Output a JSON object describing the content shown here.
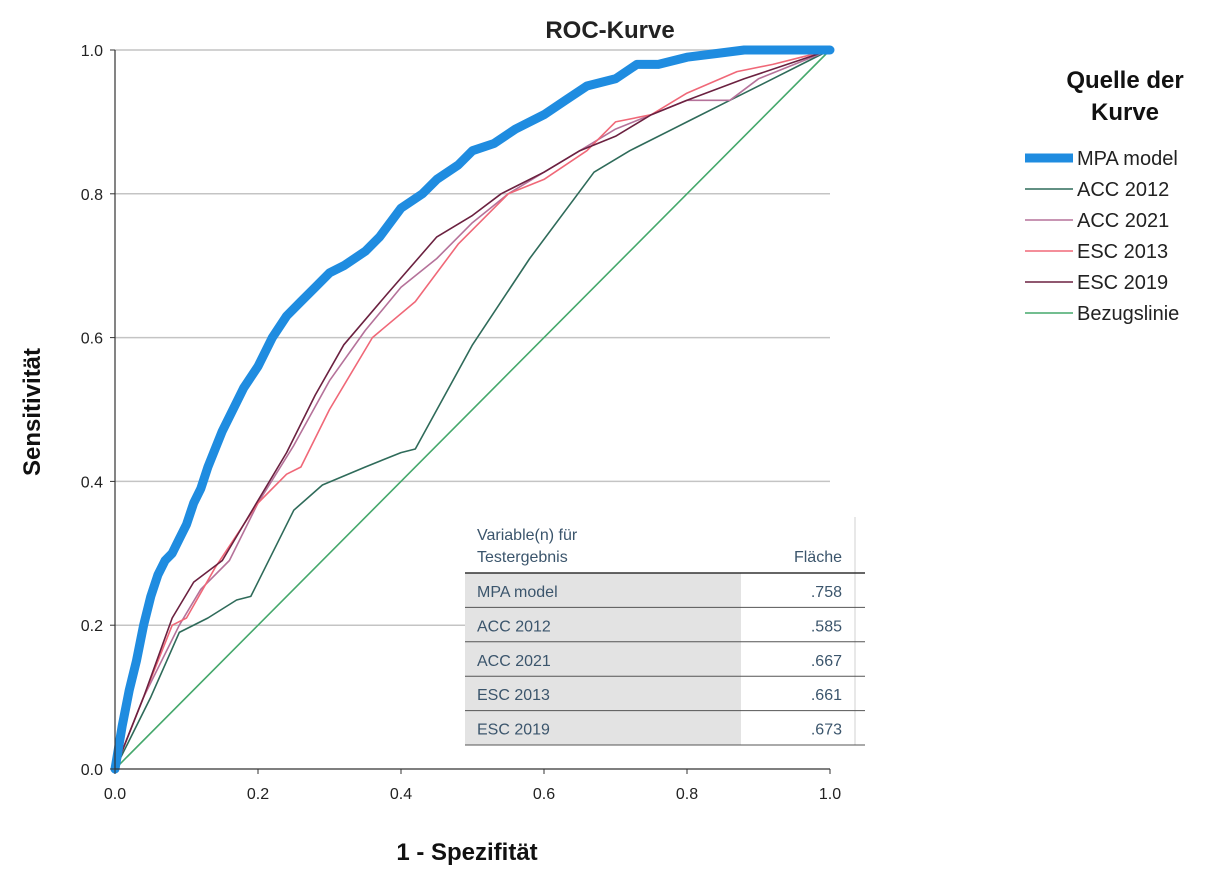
{
  "chart_data": {
    "type": "line",
    "title": "ROC-Kurve",
    "xlabel": "1 - Spezifität",
    "ylabel": "Sensitivität",
    "xlim": [
      0,
      1
    ],
    "ylim": [
      0,
      1
    ],
    "xticks": [
      "0.0",
      "0.2",
      "0.4",
      "0.6",
      "0.8",
      "1.0"
    ],
    "yticks": [
      "0.0",
      "0.2",
      "0.4",
      "0.6",
      "0.8",
      "1.0"
    ],
    "grid": "horizontal",
    "legend": {
      "title": "Quelle der Kurve",
      "placement": "right"
    },
    "series": [
      {
        "name": "MPA model",
        "color": "#1f8ce0",
        "x": [
          0,
          0.01,
          0.02,
          0.03,
          0.04,
          0.05,
          0.06,
          0.07,
          0.08,
          0.09,
          0.1,
          0.11,
          0.12,
          0.13,
          0.15,
          0.17,
          0.18,
          0.2,
          0.22,
          0.24,
          0.26,
          0.28,
          0.3,
          0.32,
          0.35,
          0.37,
          0.4,
          0.43,
          0.45,
          0.48,
          0.5,
          0.53,
          0.56,
          0.6,
          0.63,
          0.66,
          0.7,
          0.73,
          0.76,
          0.8,
          0.84,
          0.88,
          0.92,
          0.96,
          1.0
        ],
        "y": [
          0,
          0.06,
          0.11,
          0.15,
          0.2,
          0.24,
          0.27,
          0.29,
          0.3,
          0.32,
          0.34,
          0.37,
          0.39,
          0.42,
          0.47,
          0.51,
          0.53,
          0.56,
          0.6,
          0.63,
          0.65,
          0.67,
          0.69,
          0.7,
          0.72,
          0.74,
          0.78,
          0.8,
          0.82,
          0.84,
          0.86,
          0.87,
          0.89,
          0.91,
          0.93,
          0.95,
          0.96,
          0.98,
          0.98,
          0.99,
          0.995,
          1.0,
          1.0,
          1.0,
          1.0
        ]
      },
      {
        "name": "ACC 2012",
        "color": "#2f6b5a",
        "x": [
          0,
          0.05,
          0.09,
          0.13,
          0.17,
          0.19,
          0.25,
          0.29,
          0.35,
          0.4,
          0.42,
          0.5,
          0.58,
          0.67,
          0.72,
          0.8,
          0.86,
          0.92,
          0.96,
          1.0
        ],
        "y": [
          0,
          0.1,
          0.19,
          0.21,
          0.235,
          0.24,
          0.36,
          0.395,
          0.42,
          0.44,
          0.445,
          0.59,
          0.71,
          0.83,
          0.86,
          0.9,
          0.93,
          0.96,
          0.98,
          1.0
        ]
      },
      {
        "name": "ACC 2021",
        "color": "#b5729a",
        "x": [
          0,
          0.04,
          0.09,
          0.12,
          0.16,
          0.2,
          0.25,
          0.3,
          0.35,
          0.4,
          0.45,
          0.5,
          0.55,
          0.6,
          0.65,
          0.7,
          0.75,
          0.8,
          0.86,
          0.9,
          0.95,
          1.0
        ],
        "y": [
          0,
          0.1,
          0.2,
          0.25,
          0.29,
          0.37,
          0.45,
          0.54,
          0.61,
          0.67,
          0.71,
          0.76,
          0.8,
          0.83,
          0.86,
          0.89,
          0.91,
          0.93,
          0.93,
          0.96,
          0.98,
          1.0
        ]
      },
      {
        "name": "ESC 2013",
        "color": "#f06878",
        "x": [
          0,
          0.04,
          0.08,
          0.1,
          0.14,
          0.2,
          0.24,
          0.26,
          0.3,
          0.36,
          0.42,
          0.48,
          0.55,
          0.6,
          0.66,
          0.7,
          0.75,
          0.8,
          0.87,
          0.92,
          0.96,
          1.0
        ],
        "y": [
          0,
          0.1,
          0.2,
          0.21,
          0.28,
          0.37,
          0.41,
          0.42,
          0.5,
          0.6,
          0.65,
          0.73,
          0.8,
          0.82,
          0.86,
          0.9,
          0.91,
          0.94,
          0.97,
          0.98,
          0.99,
          1.0
        ]
      },
      {
        "name": "ESC 2019",
        "color": "#6b2140",
        "x": [
          0,
          0.04,
          0.08,
          0.11,
          0.15,
          0.18,
          0.24,
          0.28,
          0.32,
          0.38,
          0.45,
          0.5,
          0.54,
          0.6,
          0.65,
          0.7,
          0.75,
          0.8,
          0.88,
          0.94,
          1.0
        ],
        "y": [
          0,
          0.1,
          0.21,
          0.26,
          0.29,
          0.34,
          0.44,
          0.52,
          0.59,
          0.66,
          0.74,
          0.77,
          0.8,
          0.83,
          0.86,
          0.88,
          0.91,
          0.93,
          0.96,
          0.98,
          1.0
        ]
      },
      {
        "name": "Bezugslinie",
        "color": "#45a86c",
        "x": [
          0,
          1
        ],
        "y": [
          0,
          1
        ]
      }
    ],
    "area_table": {
      "header_variable": [
        "Variable(n) für",
        "Testergebnis"
      ],
      "header_area": "Fläche",
      "rows": [
        {
          "variable": "MPA model",
          "area": ".758"
        },
        {
          "variable": "ACC 2012",
          "area": ".585"
        },
        {
          "variable": "ACC 2021",
          "area": ".667"
        },
        {
          "variable": "ESC 2013",
          "area": ".661"
        },
        {
          "variable": "ESC 2019",
          "area": ".673"
        }
      ]
    }
  }
}
